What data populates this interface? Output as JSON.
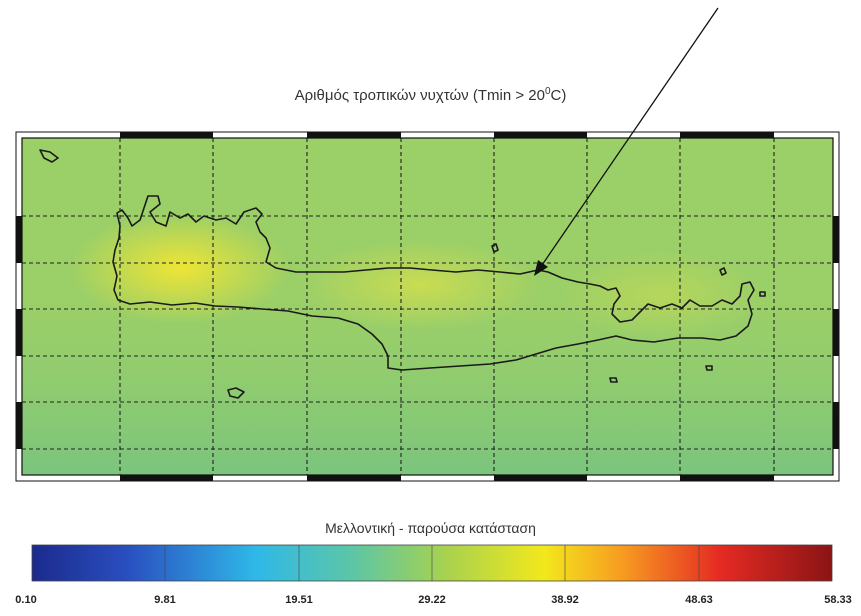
{
  "title": {
    "text": "Αριθμός τροπικών νυχτών (Tmin > 20",
    "sup": "0",
    "tail": "C)"
  },
  "colorbar": {
    "title": "Μελλοντική - παρούσα κατάσταση",
    "ticks": [
      "0.10",
      "9.81",
      "19.51",
      "29.22",
      "38.92",
      "48.63",
      "58.33"
    ],
    "min": 0.1,
    "max": 58.33,
    "colormap": "jet"
  },
  "map": {
    "field_range": [
      24,
      38
    ],
    "grid": true,
    "colors": {
      "coast": "#1a1a1a",
      "grid": "#222222",
      "arrow": "#111111",
      "frame": "#111111"
    }
  }
}
